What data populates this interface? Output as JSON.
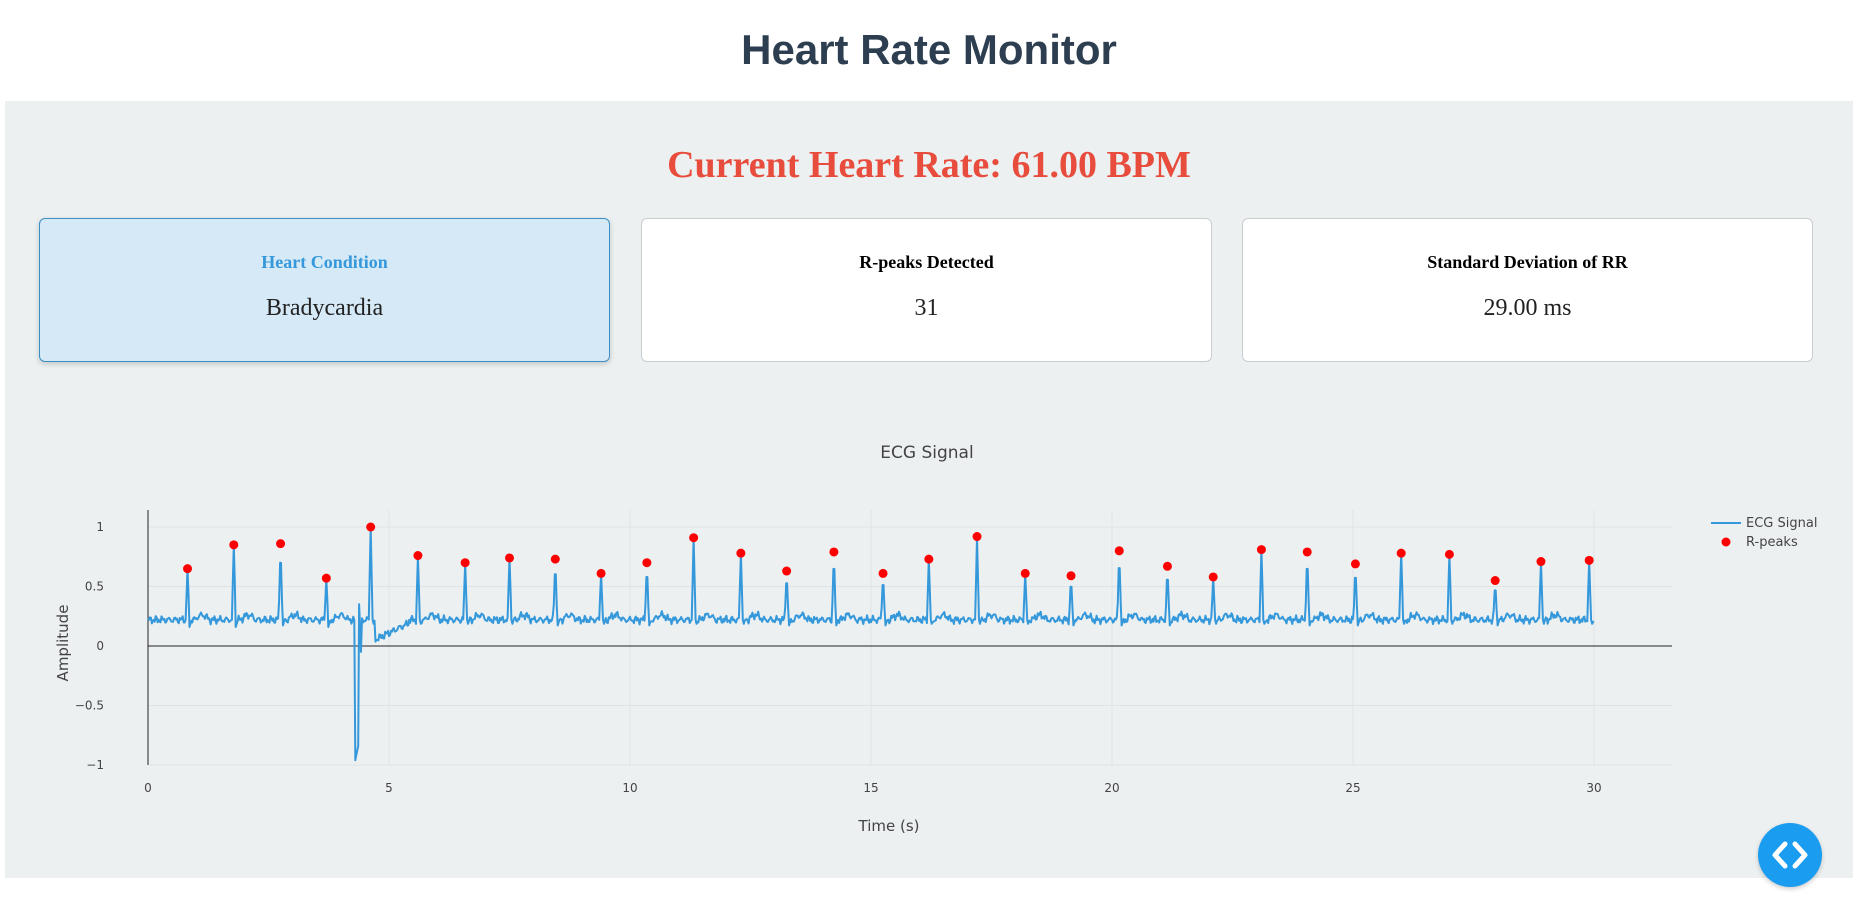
{
  "header": {
    "title": "Heart Rate Monitor"
  },
  "summary": {
    "heart_rate_text": "Current Heart Rate: 61.00 BPM"
  },
  "cards": [
    {
      "label": "Heart Condition",
      "value": "Bradycardia"
    },
    {
      "label": "R-peaks Detected",
      "value": "31"
    },
    {
      "label": "Standard Deviation of RR",
      "value": "29.00 ms"
    }
  ],
  "fab": {
    "icon": "code-icon",
    "color": "#1a9cf0"
  },
  "colors": {
    "title": "#2c3e50",
    "heart_rate": "#e74c3c",
    "ecg_line": "#3498db",
    "r_peaks": "#ff0000"
  },
  "chart_data": {
    "type": "line",
    "title": "ECG Signal",
    "xlabel": "Time (s)",
    "ylabel": "Amplitude",
    "xlim": [
      -0.5,
      31.7
    ],
    "ylim": [
      -1.0,
      1.15
    ],
    "x_ticks": [
      0,
      5,
      10,
      15,
      20,
      25,
      30
    ],
    "y_ticks": [
      -1,
      -0.5,
      0,
      0.5,
      1
    ],
    "y_tick_labels": [
      "−1",
      "−0.5",
      "0",
      "0.5",
      "1"
    ],
    "grid": true,
    "legend_position": "top-right",
    "series": [
      {
        "name": "ECG Signal",
        "kind": "line",
        "color": "#3498db",
        "baseline": 0.22,
        "x_start": 0,
        "x_end": 30
      },
      {
        "name": "R-peaks",
        "kind": "markers",
        "color": "#ff0000",
        "x": [
          0.82,
          1.78,
          2.75,
          3.7,
          4.62,
          5.6,
          6.58,
          7.5,
          8.45,
          9.4,
          10.35,
          11.32,
          12.3,
          13.25,
          14.23,
          15.25,
          16.2,
          17.2,
          18.2,
          19.15,
          20.15,
          21.15,
          22.1,
          23.1,
          24.05,
          25.05,
          26.0,
          27.0,
          27.95,
          28.9,
          29.9
        ],
        "y": [
          0.65,
          0.85,
          0.86,
          0.57,
          1.0,
          0.76,
          0.7,
          0.74,
          0.73,
          0.61,
          0.7,
          0.91,
          0.78,
          0.63,
          0.79,
          0.61,
          0.73,
          0.92,
          0.61,
          0.59,
          0.8,
          0.67,
          0.58,
          0.81,
          0.79,
          0.69,
          0.78,
          0.77,
          0.55,
          0.71,
          0.72
        ]
      }
    ]
  }
}
